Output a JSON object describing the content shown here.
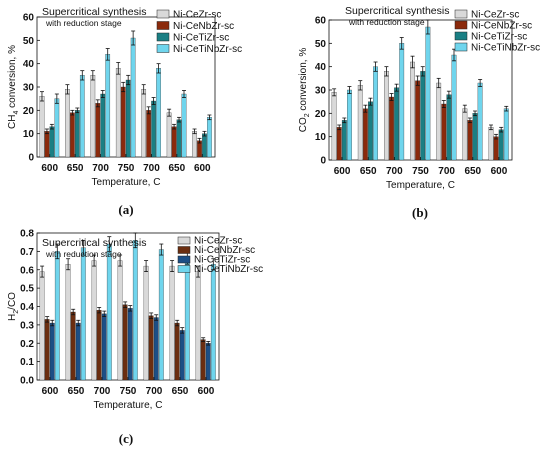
{
  "chart_data": [
    {
      "id": "a",
      "type": "bar",
      "panel_label": "(a)",
      "annotation": "Supercritical synthesis",
      "annotation_sub": "with reduction stage",
      "xlabel": "Temperature, C",
      "ylabel": "CH4 conversion, %",
      "ylabel_parts": [
        "CH",
        "4",
        " conversion, %"
      ],
      "ylim": [
        0,
        60
      ],
      "yticks": [
        0,
        10,
        20,
        30,
        40,
        50,
        60
      ],
      "categories": [
        "600",
        "650",
        "700",
        "750",
        "700",
        "650",
        "600"
      ],
      "legend_position": "top-right",
      "series": [
        {
          "name": "Ni-CeZr-sc",
          "color": "#d9d9d9",
          "values": [
            26,
            29,
            35,
            38,
            29,
            19,
            11
          ],
          "errors": [
            2,
            2,
            2,
            2.5,
            2,
            1.5,
            1
          ]
        },
        {
          "name": "Ni-CeNbZr-sc",
          "color": "#8b2a0c",
          "values": [
            11,
            19,
            23,
            30,
            20,
            13,
            7
          ],
          "errors": [
            1,
            1,
            1.5,
            2,
            1.5,
            1,
            1
          ]
        },
        {
          "name": "Ni-CeTiZr-sc",
          "color": "#1a7f84",
          "values": [
            13,
            20,
            27,
            33,
            24,
            16,
            10
          ],
          "errors": [
            1,
            1,
            1.5,
            2,
            1.5,
            1,
            1
          ]
        },
        {
          "name": "Ni-CeTiNbZr-sc",
          "color": "#6fd5ed",
          "values": [
            25,
            35,
            44,
            51,
            38,
            27,
            17
          ],
          "errors": [
            2,
            2,
            2.5,
            3,
            2,
            1.5,
            1
          ]
        }
      ]
    },
    {
      "id": "b",
      "type": "bar",
      "panel_label": "(b)",
      "annotation": "Supercritical synthesis",
      "annotation_sub": "with reduction stage",
      "xlabel": "Temperature, C",
      "ylabel": "CO2 conversion, %",
      "ylabel_parts": [
        "CO",
        "2",
        " conversion, %"
      ],
      "ylim": [
        0,
        60
      ],
      "yticks": [
        0,
        10,
        20,
        30,
        40,
        50,
        60
      ],
      "categories": [
        "600",
        "650",
        "700",
        "750",
        "700",
        "650",
        "600"
      ],
      "legend_position": "top-right",
      "series": [
        {
          "name": "Ni-CeZr-sc",
          "color": "#d9d9d9",
          "values": [
            29,
            32,
            38,
            42,
            33,
            22,
            14
          ],
          "errors": [
            1.5,
            2,
            2,
            2.5,
            2,
            1.5,
            1
          ]
        },
        {
          "name": "Ni-CeNbZr-sc",
          "color": "#8b2a0c",
          "values": [
            14,
            22,
            27,
            34,
            24,
            17,
            10
          ],
          "errors": [
            1,
            1.5,
            1.5,
            2,
            1.5,
            1,
            1
          ]
        },
        {
          "name": "Ni-CeTiZr-sc",
          "color": "#1a7f84",
          "values": [
            17,
            25,
            31,
            38,
            28,
            20,
            13
          ],
          "errors": [
            1,
            1.5,
            1.5,
            2,
            1.5,
            1,
            1
          ]
        },
        {
          "name": "Ni-CeTiNbZr-sc",
          "color": "#6fd5ed",
          "values": [
            30,
            40,
            50,
            57,
            45,
            33,
            22
          ],
          "errors": [
            1.5,
            2,
            2.5,
            3,
            2.5,
            1.5,
            1
          ]
        }
      ]
    },
    {
      "id": "c",
      "type": "bar",
      "panel_label": "(c)",
      "annotation": "Supercritical synthesis",
      "annotation_sub": "with reduction stage",
      "xlabel": "Temperature, C",
      "ylabel": "H2/CO",
      "ylabel_parts": [
        "H",
        "2",
        "/CO"
      ],
      "ylim": [
        0,
        0.8
      ],
      "yticks": [
        0.0,
        0.1,
        0.2,
        0.3,
        0.4,
        0.5,
        0.6,
        0.7,
        0.8
      ],
      "categories": [
        "600",
        "650",
        "700",
        "750",
        "700",
        "650",
        "600"
      ],
      "legend_position": "top-right",
      "series": [
        {
          "name": "Ni-CeZr-sc",
          "color": "#d9d9d9",
          "values": [
            0.59,
            0.63,
            0.65,
            0.65,
            0.62,
            0.62,
            0.59
          ],
          "errors": [
            0.03,
            0.03,
            0.03,
            0.03,
            0.03,
            0.03,
            0.03
          ]
        },
        {
          "name": "Ni-CeNbZr-sc",
          "color": "#6b2e10",
          "values": [
            0.33,
            0.37,
            0.38,
            0.41,
            0.35,
            0.31,
            0.22
          ],
          "errors": [
            0.015,
            0.015,
            0.015,
            0.015,
            0.015,
            0.015,
            0.01
          ]
        },
        {
          "name": "Ni-CeTiZr-sc",
          "color": "#1c4f86",
          "values": [
            0.31,
            0.31,
            0.36,
            0.39,
            0.34,
            0.27,
            0.2
          ],
          "errors": [
            0.015,
            0.015,
            0.015,
            0.015,
            0.015,
            0.015,
            0.01
          ]
        },
        {
          "name": "Ni-CeTiNbZr-sc",
          "color": "#6fd5ed",
          "values": [
            0.7,
            0.72,
            0.74,
            0.76,
            0.71,
            0.67,
            0.63
          ],
          "errors": [
            0.04,
            0.04,
            0.04,
            0.04,
            0.03,
            0.04,
            0.03
          ]
        }
      ]
    }
  ]
}
